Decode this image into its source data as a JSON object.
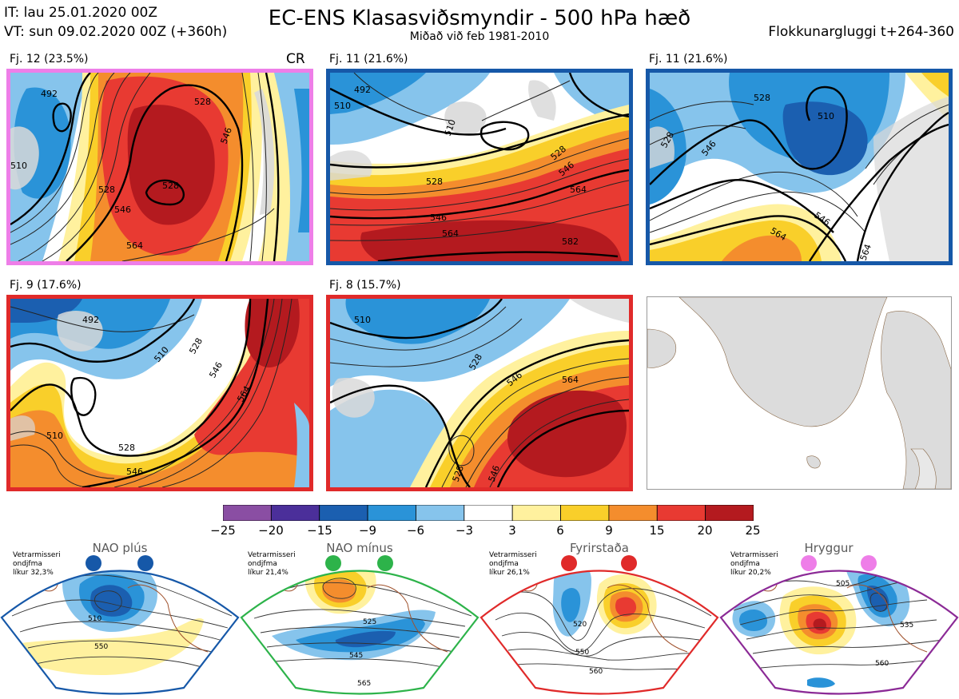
{
  "header": {
    "it_line": "IT: lau 25.01.2020 00Z",
    "vt_line": "VT: sun 09.02.2020 00Z  (+360h)",
    "title": "EC-ENS Klasasviðsmyndir - 500 hPa hæð",
    "subtitle": "Miðað við feb 1981-2010",
    "window": "Flokkunargluggi t+264-360"
  },
  "panels": [
    {
      "label": "Fj. 12 (23.5%)",
      "tag": "CR",
      "border": "#ee7ee8",
      "contours": [
        "492",
        "510",
        "528",
        "546",
        "564",
        "528",
        "528",
        "546"
      ]
    },
    {
      "label": "Fj. 11 (21.6%)",
      "border": "#1658a8",
      "contours": [
        "492",
        "510",
        "528",
        "546",
        "564",
        "582",
        "510",
        "528",
        "546",
        "564"
      ]
    },
    {
      "label": "Fj. 11 (21.6%)",
      "border": "#1658a8",
      "contours": [
        "528",
        "510",
        "528",
        "546",
        "564",
        "546",
        "564"
      ]
    },
    {
      "label": "Fj. 9 (17.6%)",
      "border": "#e02a2a",
      "contours": [
        "492",
        "510",
        "528",
        "546",
        "510",
        "528",
        "546",
        "564"
      ]
    },
    {
      "label": "Fj. 8 (15.7%)",
      "border": "#e02a2a",
      "contours": [
        "510",
        "528",
        "546",
        "564",
        "528",
        "546"
      ]
    },
    {
      "label": "",
      "border": "#999999",
      "contours": []
    }
  ],
  "colorbar": {
    "colors": [
      "#8a4ea3",
      "#4b2f9a",
      "#1b5fb0",
      "#2a93d8",
      "#86c4ec",
      "#ffffff",
      "#fff19e",
      "#f9cf2a",
      "#f48d2d",
      "#e83a32",
      "#b41a1f"
    ],
    "labels": [
      "−25",
      "−20",
      "−15",
      "−9",
      "−6",
      "−3",
      "3",
      "6",
      "9",
      "15",
      "20",
      "25"
    ]
  },
  "regimes": [
    {
      "name": "NAO plús",
      "note": [
        "Vetrarmisseri",
        "ondjfma",
        "líkur 32,3%"
      ],
      "color": "#1658a8",
      "contours": [
        "510",
        "550"
      ]
    },
    {
      "name": "NAO mínus",
      "note": [
        "Vetrarmisseri",
        "ondjfma",
        "líkur 21,4%"
      ],
      "color": "#2db34a",
      "contours": [
        "525",
        "545",
        "565"
      ]
    },
    {
      "name": "Fyrirstaða",
      "note": [
        "Vetrarmisseri",
        "ondjfma",
        "líkur 26,1%"
      ],
      "color": "#e02a2a",
      "contours": [
        "520",
        "550",
        "560"
      ]
    },
    {
      "name": "Hryggur",
      "note": [
        "Vetrarmisseri",
        "ondjfma",
        "líkur 20,2%"
      ],
      "color": "#ee7ee8",
      "contours": [
        "505",
        "535",
        "560"
      ]
    }
  ]
}
